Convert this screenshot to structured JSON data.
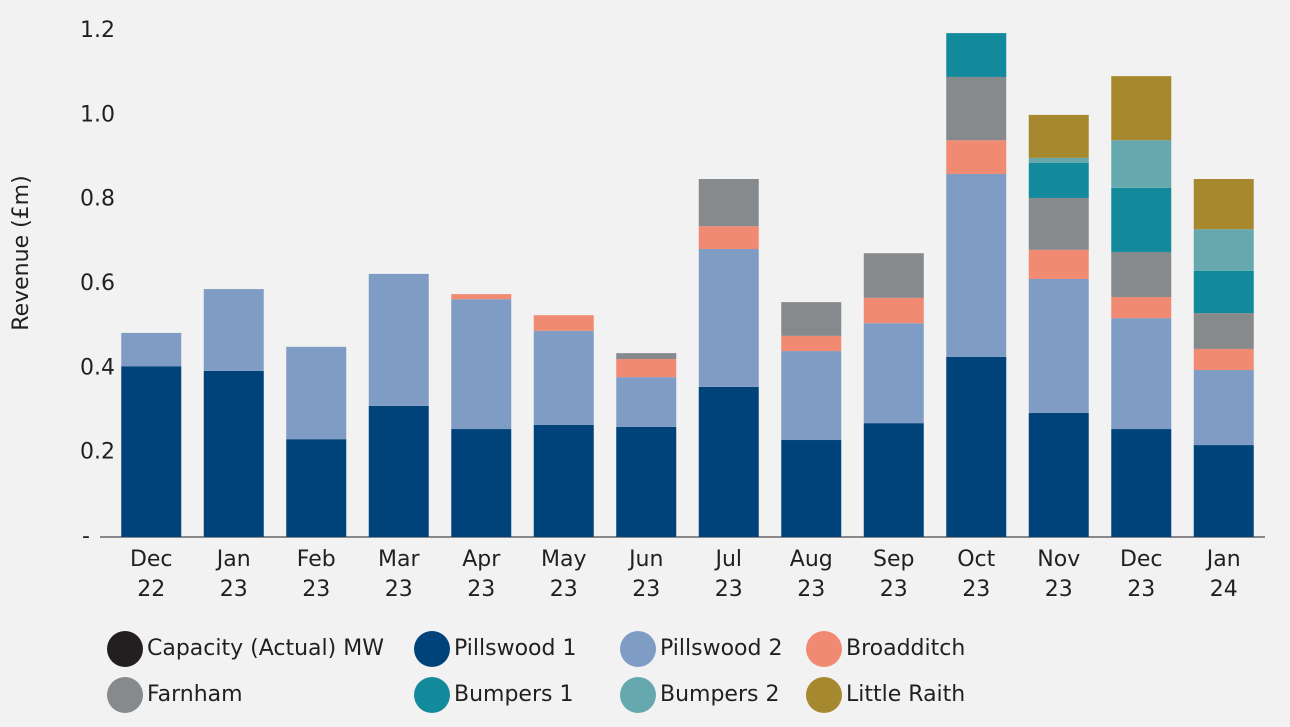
{
  "chart_data": {
    "type": "stacked_bar",
    "y_label": "Revenue (£m)",
    "categories": [
      "Dec 22",
      "Jan 23",
      "Feb 23",
      "Mar 23",
      "Apr 23",
      "May 23",
      "Jun 23",
      "Jul 23",
      "Aug 23",
      "Sep 23",
      "Oct 23",
      "Nov 23",
      "Dec 23",
      "Jan 24"
    ],
    "series": [
      {
        "name": "Capacity (Actual) MW",
        "color": "#231f20",
        "values": [
          null,
          null,
          null,
          null,
          null,
          null,
          null,
          null,
          null,
          null,
          null,
          null,
          null,
          null
        ]
      },
      {
        "name": "Pillswood 1",
        "color": "#00427a",
        "values": [
          0.405,
          0.394,
          0.232,
          0.311,
          0.256,
          0.266,
          0.261,
          0.356,
          0.23,
          0.27,
          0.427,
          0.294,
          0.256,
          0.218
        ]
      },
      {
        "name": "Pillswood 2",
        "color": "#7f9dc4",
        "values": [
          0.079,
          0.194,
          0.219,
          0.313,
          0.308,
          0.223,
          0.118,
          0.327,
          0.211,
          0.237,
          0.434,
          0.318,
          0.263,
          0.178
        ]
      },
      {
        "name": "Broadditch",
        "color": "#f08a72",
        "values": [
          null,
          null,
          null,
          null,
          0.012,
          0.037,
          0.043,
          0.054,
          0.036,
          0.06,
          0.08,
          0.069,
          0.05,
          0.05
        ]
      },
      {
        "name": "Farnham",
        "color": "#868a8c",
        "values": [
          null,
          null,
          null,
          null,
          null,
          null,
          0.014,
          0.112,
          0.08,
          0.106,
          0.15,
          0.123,
          0.107,
          0.085
        ]
      },
      {
        "name": "Bumpers 1",
        "color": "#138a9b",
        "values": [
          null,
          null,
          null,
          null,
          null,
          null,
          null,
          null,
          null,
          null,
          0.104,
          0.083,
          0.152,
          0.1
        ]
      },
      {
        "name": "Bumpers 2",
        "color": "#65a8ad",
        "values": [
          null,
          null,
          null,
          null,
          null,
          null,
          null,
          null,
          null,
          null,
          null,
          0.012,
          0.113,
          0.099
        ]
      },
      {
        "name": "Little Raith",
        "color": "#a6892f",
        "values": [
          null,
          null,
          null,
          null,
          null,
          null,
          null,
          null,
          null,
          null,
          null,
          0.102,
          0.152,
          0.119
        ]
      }
    ],
    "ylim": [
      0,
      1.2
    ],
    "yticks": [
      {
        "value": 0,
        "label": "-"
      },
      0.2,
      0.4,
      0.6,
      {
        "value": 0.8,
        "label": "0.8"
      },
      {
        "value": 1,
        "label": "1.0"
      },
      1.2
    ],
    "legend": "bottom"
  }
}
